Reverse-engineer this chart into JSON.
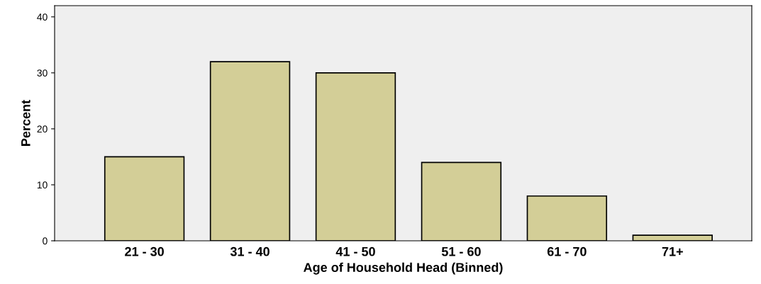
{
  "chart_data": {
    "type": "bar",
    "xlabel": "Age of Household Head (Binned)",
    "ylabel": "Percent",
    "categories": [
      "21 - 30",
      "31 - 40",
      "41 - 50",
      "51 - 60",
      "61 - 70",
      "71+"
    ],
    "values": [
      15,
      32,
      30,
      14,
      8,
      1
    ],
    "color": "#d3ce97",
    "ylim": [
      0,
      42
    ],
    "yticks": [
      0,
      10,
      20,
      30,
      40
    ],
    "grid": false
  }
}
